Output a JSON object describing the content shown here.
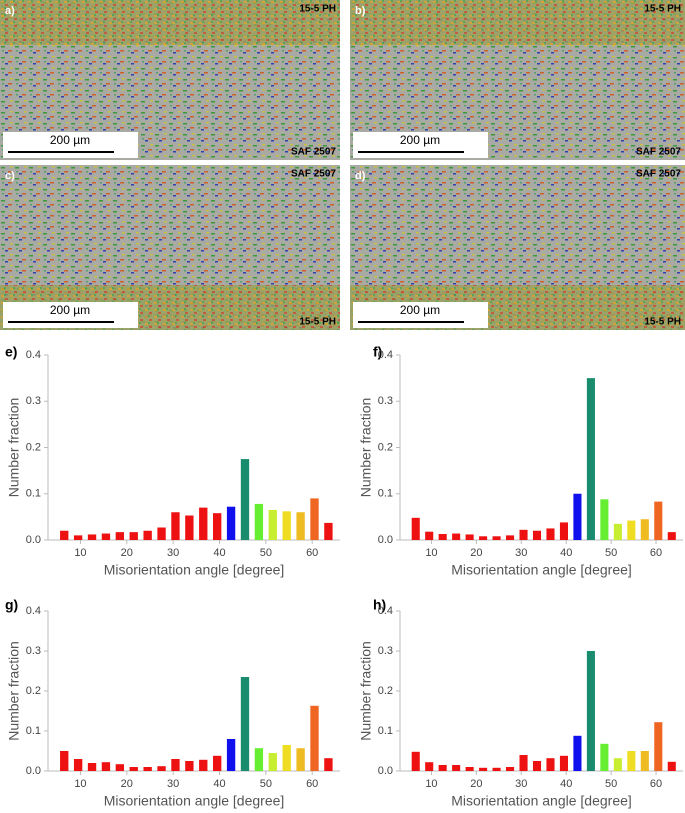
{
  "images": [
    {
      "label": "a)",
      "top": "15-5 PH",
      "bottom": "SAF 2507",
      "scale": "200 µm"
    },
    {
      "label": "b)",
      "top": "15-5 PH",
      "bottom": "SAF 2507",
      "scale": "200 µm"
    },
    {
      "label": "c)",
      "top": "SAF 2507",
      "bottom": "15-5 PH",
      "scale": "200 µm"
    },
    {
      "label": "d)",
      "top": "SAF 2507",
      "bottom": "15-5 PH",
      "scale": "200 µm"
    }
  ],
  "chart_data": [
    {
      "type": "bar",
      "panel": "e)",
      "xlabel": "Misorientation angle [degree]",
      "ylabel": "Number fraction",
      "x": [
        6.5,
        9.5,
        12.5,
        15.5,
        18.5,
        21.5,
        24.5,
        27.5,
        30.5,
        33.5,
        36.5,
        39.5,
        42.5,
        45.5,
        48.5,
        51.5,
        54.5,
        57.5,
        60.5,
        63.5
      ],
      "values": [
        0.02,
        0.01,
        0.012,
        0.014,
        0.017,
        0.017,
        0.02,
        0.027,
        0.06,
        0.053,
        0.07,
        0.058,
        0.072,
        0.175,
        0.078,
        0.065,
        0.062,
        0.06,
        0.09,
        0.037
      ],
      "colors": [
        "#ee1111",
        "#ee1111",
        "#ee1111",
        "#ee1111",
        "#ee1111",
        "#ee1111",
        "#ee1111",
        "#ee1111",
        "#ee1111",
        "#ee1111",
        "#ee1111",
        "#ee1111",
        "#1010ee",
        "#1a8c6e",
        "#66ee33",
        "#c8ee33",
        "#eedd22",
        "#eebb22",
        "#ee6622",
        "#ee1111"
      ],
      "xlim": [
        3,
        66
      ],
      "ylim": [
        0,
        0.4
      ],
      "xticks": [
        10,
        20,
        30,
        40,
        50,
        60
      ],
      "yticks": [
        {
          "value": 0,
          "label": "0.0"
        },
        0.1,
        0.2,
        0.3,
        0.4
      ]
    },
    {
      "type": "bar",
      "panel": "f)",
      "xlabel": "Misorientation angle [degree]",
      "ylabel": "Number fraction",
      "x": [
        6.5,
        9.5,
        12.5,
        15.5,
        18.5,
        21.5,
        24.5,
        27.5,
        30.5,
        33.5,
        36.5,
        39.5,
        42.5,
        45.5,
        48.5,
        51.5,
        54.5,
        57.5,
        60.5,
        63.5
      ],
      "values": [
        0.048,
        0.018,
        0.013,
        0.014,
        0.012,
        0.008,
        0.008,
        0.01,
        0.022,
        0.02,
        0.025,
        0.038,
        0.1,
        0.35,
        0.088,
        0.035,
        0.042,
        0.045,
        0.083,
        0.017
      ],
      "colors": [
        "#ee1111",
        "#ee1111",
        "#ee1111",
        "#ee1111",
        "#ee1111",
        "#ee1111",
        "#ee1111",
        "#ee1111",
        "#ee1111",
        "#ee1111",
        "#ee1111",
        "#ee1111",
        "#1010ee",
        "#1a8c6e",
        "#66ee33",
        "#c8ee33",
        "#eedd22",
        "#eebb22",
        "#ee6622",
        "#ee1111"
      ],
      "xlim": [
        3,
        66
      ],
      "ylim": [
        0,
        0.4
      ],
      "xticks": [
        10,
        20,
        30,
        40,
        50,
        60
      ],
      "yticks": [
        {
          "value": 0,
          "label": "0.0"
        },
        0.1,
        0.2,
        0.3,
        0.4
      ]
    },
    {
      "type": "bar",
      "panel": "g)",
      "xlabel": "Misorientation angle [degree]",
      "ylabel": "Number fraction",
      "x": [
        6.5,
        9.5,
        12.5,
        15.5,
        18.5,
        21.5,
        24.5,
        27.5,
        30.5,
        33.5,
        36.5,
        39.5,
        42.5,
        45.5,
        48.5,
        51.5,
        54.5,
        57.5,
        60.5,
        63.5
      ],
      "values": [
        0.05,
        0.03,
        0.02,
        0.022,
        0.017,
        0.01,
        0.01,
        0.012,
        0.03,
        0.025,
        0.028,
        0.038,
        0.08,
        0.235,
        0.057,
        0.045,
        0.065,
        0.057,
        0.163,
        0.032
      ],
      "colors": [
        "#ee1111",
        "#ee1111",
        "#ee1111",
        "#ee1111",
        "#ee1111",
        "#ee1111",
        "#ee1111",
        "#ee1111",
        "#ee1111",
        "#ee1111",
        "#ee1111",
        "#ee1111",
        "#1010ee",
        "#1a8c6e",
        "#66ee33",
        "#c8ee33",
        "#eedd22",
        "#eebb22",
        "#ee6622",
        "#ee1111"
      ],
      "xlim": [
        3,
        66
      ],
      "ylim": [
        0,
        0.4
      ],
      "xticks": [
        10,
        20,
        30,
        40,
        50,
        60
      ],
      "yticks": [
        {
          "value": 0,
          "label": "0.0"
        },
        0.1,
        0.2,
        0.3,
        0.4
      ]
    },
    {
      "type": "bar",
      "panel": "h)",
      "xlabel": "Misorientation angle [degree]",
      "ylabel": "Number fraction",
      "x": [
        6.5,
        9.5,
        12.5,
        15.5,
        18.5,
        21.5,
        24.5,
        27.5,
        30.5,
        33.5,
        36.5,
        39.5,
        42.5,
        45.5,
        48.5,
        51.5,
        54.5,
        57.5,
        60.5,
        63.5
      ],
      "values": [
        0.048,
        0.022,
        0.015,
        0.015,
        0.01,
        0.008,
        0.008,
        0.01,
        0.04,
        0.025,
        0.032,
        0.038,
        0.088,
        0.3,
        0.068,
        0.032,
        0.05,
        0.05,
        0.122,
        0.023
      ],
      "colors": [
        "#ee1111",
        "#ee1111",
        "#ee1111",
        "#ee1111",
        "#ee1111",
        "#ee1111",
        "#ee1111",
        "#ee1111",
        "#ee1111",
        "#ee1111",
        "#ee1111",
        "#ee1111",
        "#1010ee",
        "#1a8c6e",
        "#66ee33",
        "#c8ee33",
        "#eedd22",
        "#eebb22",
        "#ee6622",
        "#ee1111"
      ],
      "xlim": [
        3,
        66
      ],
      "ylim": [
        0,
        0.4
      ],
      "xticks": [
        10,
        20,
        30,
        40,
        50,
        60
      ],
      "yticks": [
        {
          "value": 0,
          "label": "0.0"
        },
        0.1,
        0.2,
        0.3,
        0.4
      ]
    }
  ]
}
